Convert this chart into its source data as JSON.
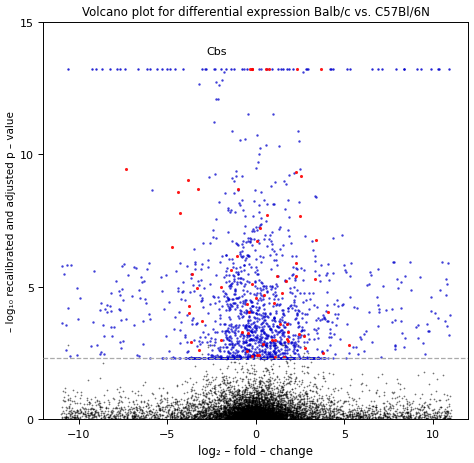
{
  "title": "Volcano plot for differential expression Balb/c vs. C57Bl/6N",
  "xlabel": "log₂ – fold – change",
  "ylabel": "– log₁₀ recalibrated and adjusted p – value",
  "xlim": [
    -12,
    12
  ],
  "ylim": [
    0,
    15
  ],
  "xticks": [
    -10,
    -5,
    0,
    5,
    10
  ],
  "yticks": [
    0,
    5,
    10,
    15
  ],
  "hline_y": 2.3,
  "hline_color": "#aaaaaa",
  "hline_style": "--",
  "cbs_label": "Cbs",
  "cbs_x": -2.8,
  "cbs_y": 13.7,
  "color_black": "#000000",
  "color_blue": "#0000cc",
  "color_red": "#ff0000",
  "background_color": "#ffffff",
  "seed": 42,
  "cap_y": 13.2
}
